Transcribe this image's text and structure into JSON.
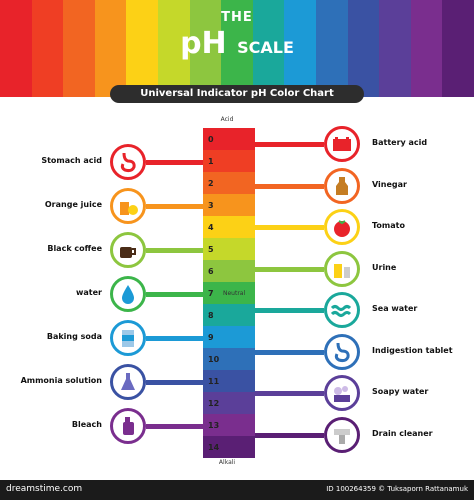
{
  "header": {
    "the": "THE",
    "ph": "pH",
    "scale": "SCALE",
    "subtitle": "Universal Indicator pH Color Chart"
  },
  "scale": {
    "acid_label": "Acid",
    "alkali_label": "Alkali",
    "neutral_label": "Neutral",
    "levels": [
      {
        "num": "0",
        "color": "#e8232a"
      },
      {
        "num": "1",
        "color": "#ef3e24"
      },
      {
        "num": "2",
        "color": "#f26522"
      },
      {
        "num": "3",
        "color": "#f7941d"
      },
      {
        "num": "4",
        "color": "#fcd116"
      },
      {
        "num": "5",
        "color": "#c5d82a"
      },
      {
        "num": "6",
        "color": "#8dc63f"
      },
      {
        "num": "7",
        "color": "#3cb54a"
      },
      {
        "num": "8",
        "color": "#1aa89b"
      },
      {
        "num": "9",
        "color": "#1c9ad6"
      },
      {
        "num": "10",
        "color": "#2e70b8"
      },
      {
        "num": "11",
        "color": "#3a52a3"
      },
      {
        "num": "12",
        "color": "#5b3f99"
      },
      {
        "num": "13",
        "color": "#7a2e8e"
      },
      {
        "num": "14",
        "color": "#5a1f74"
      }
    ]
  },
  "left_items": [
    {
      "label": "Stomach acid",
      "icon": "stomach-icon",
      "color": "#e8232a"
    },
    {
      "label": "Orange juice",
      "icon": "juice-icon",
      "color": "#f7941d"
    },
    {
      "label": "Black coffee",
      "icon": "coffee-icon",
      "color": "#8dc63f"
    },
    {
      "label": "water",
      "icon": "water-drop-icon",
      "color": "#3cb54a"
    },
    {
      "label": "Baking soda",
      "icon": "baking-soda-icon",
      "color": "#1c9ad6"
    },
    {
      "label": "Ammonia solution",
      "icon": "flask-icon",
      "color": "#3a52a3"
    },
    {
      "label": "Bleach",
      "icon": "bleach-bottle-icon",
      "color": "#7a2e8e"
    }
  ],
  "right_items": [
    {
      "label": "Battery acid",
      "icon": "battery-icon",
      "color": "#e8232a"
    },
    {
      "label": "Vinegar",
      "icon": "vinegar-icon",
      "color": "#f26522"
    },
    {
      "label": "Tomato",
      "icon": "tomato-icon",
      "color": "#fcd116"
    },
    {
      "label": "Urine",
      "icon": "urine-icon",
      "color": "#8dc63f"
    },
    {
      "label": "Sea water",
      "icon": "sea-water-icon",
      "color": "#1aa89b"
    },
    {
      "label": "Indigestion tablet",
      "icon": "tablet-icon",
      "color": "#2e70b8"
    },
    {
      "label": "Soapy water",
      "icon": "soapy-water-icon",
      "color": "#5b3f99"
    },
    {
      "label": "Drain cleaner",
      "icon": "drain-icon",
      "color": "#5a1f74"
    }
  ],
  "footer": {
    "brand": "dreamstime.com",
    "id_text": "ID 100264359 © Tuksaporn Rattanamuk"
  }
}
